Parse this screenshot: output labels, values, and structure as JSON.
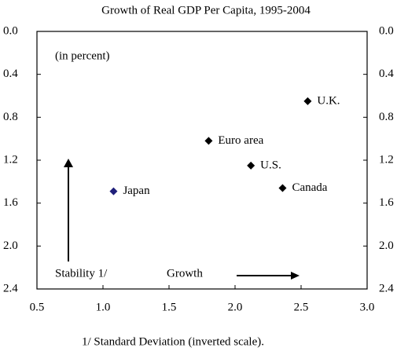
{
  "chart_data": {
    "type": "scatter",
    "title": "Growth of Real GDP Per Capita, 1995-2004",
    "annotations": [
      "(in percent)",
      "Stability 1/",
      "Growth"
    ],
    "footnote": "1/ Standard Deviation (inverted scale).",
    "labels": [
      "U.K.",
      "Euro area",
      "U.S.",
      "Canada",
      "Japan"
    ],
    "x": [
      2.55,
      1.8,
      2.12,
      2.36,
      1.08
    ],
    "values": [
      0.65,
      1.02,
      1.25,
      1.46,
      1.49
    ],
    "colors": [
      "#000000",
      "#000000",
      "#000000",
      "#000000",
      "#1f1f7a"
    ],
    "xlim": [
      0.5,
      3.0
    ],
    "xticks": [
      0.5,
      {
        "value": 1.0,
        "label": "1.0"
      },
      1.5,
      {
        "value": 2.0,
        "label": "2.0"
      },
      2.5,
      {
        "value": 3.0,
        "label": "3.0"
      }
    ],
    "ylim": [
      0.0,
      2.4
    ],
    "yinverted": true,
    "yticks": [
      {
        "value": 0.0,
        "label": "0.0"
      },
      0.4,
      0.8,
      1.2,
      1.6,
      {
        "value": 2.0,
        "label": "2.0"
      },
      2.4
    ],
    "y2lim": [
      0.0,
      2.4
    ],
    "y2ticks": [
      {
        "value": 0.0,
        "label": "0.0"
      },
      0.4,
      0.8,
      1.2,
      1.6,
      {
        "value": 2.0,
        "label": "2.0"
      },
      2.4
    ]
  }
}
